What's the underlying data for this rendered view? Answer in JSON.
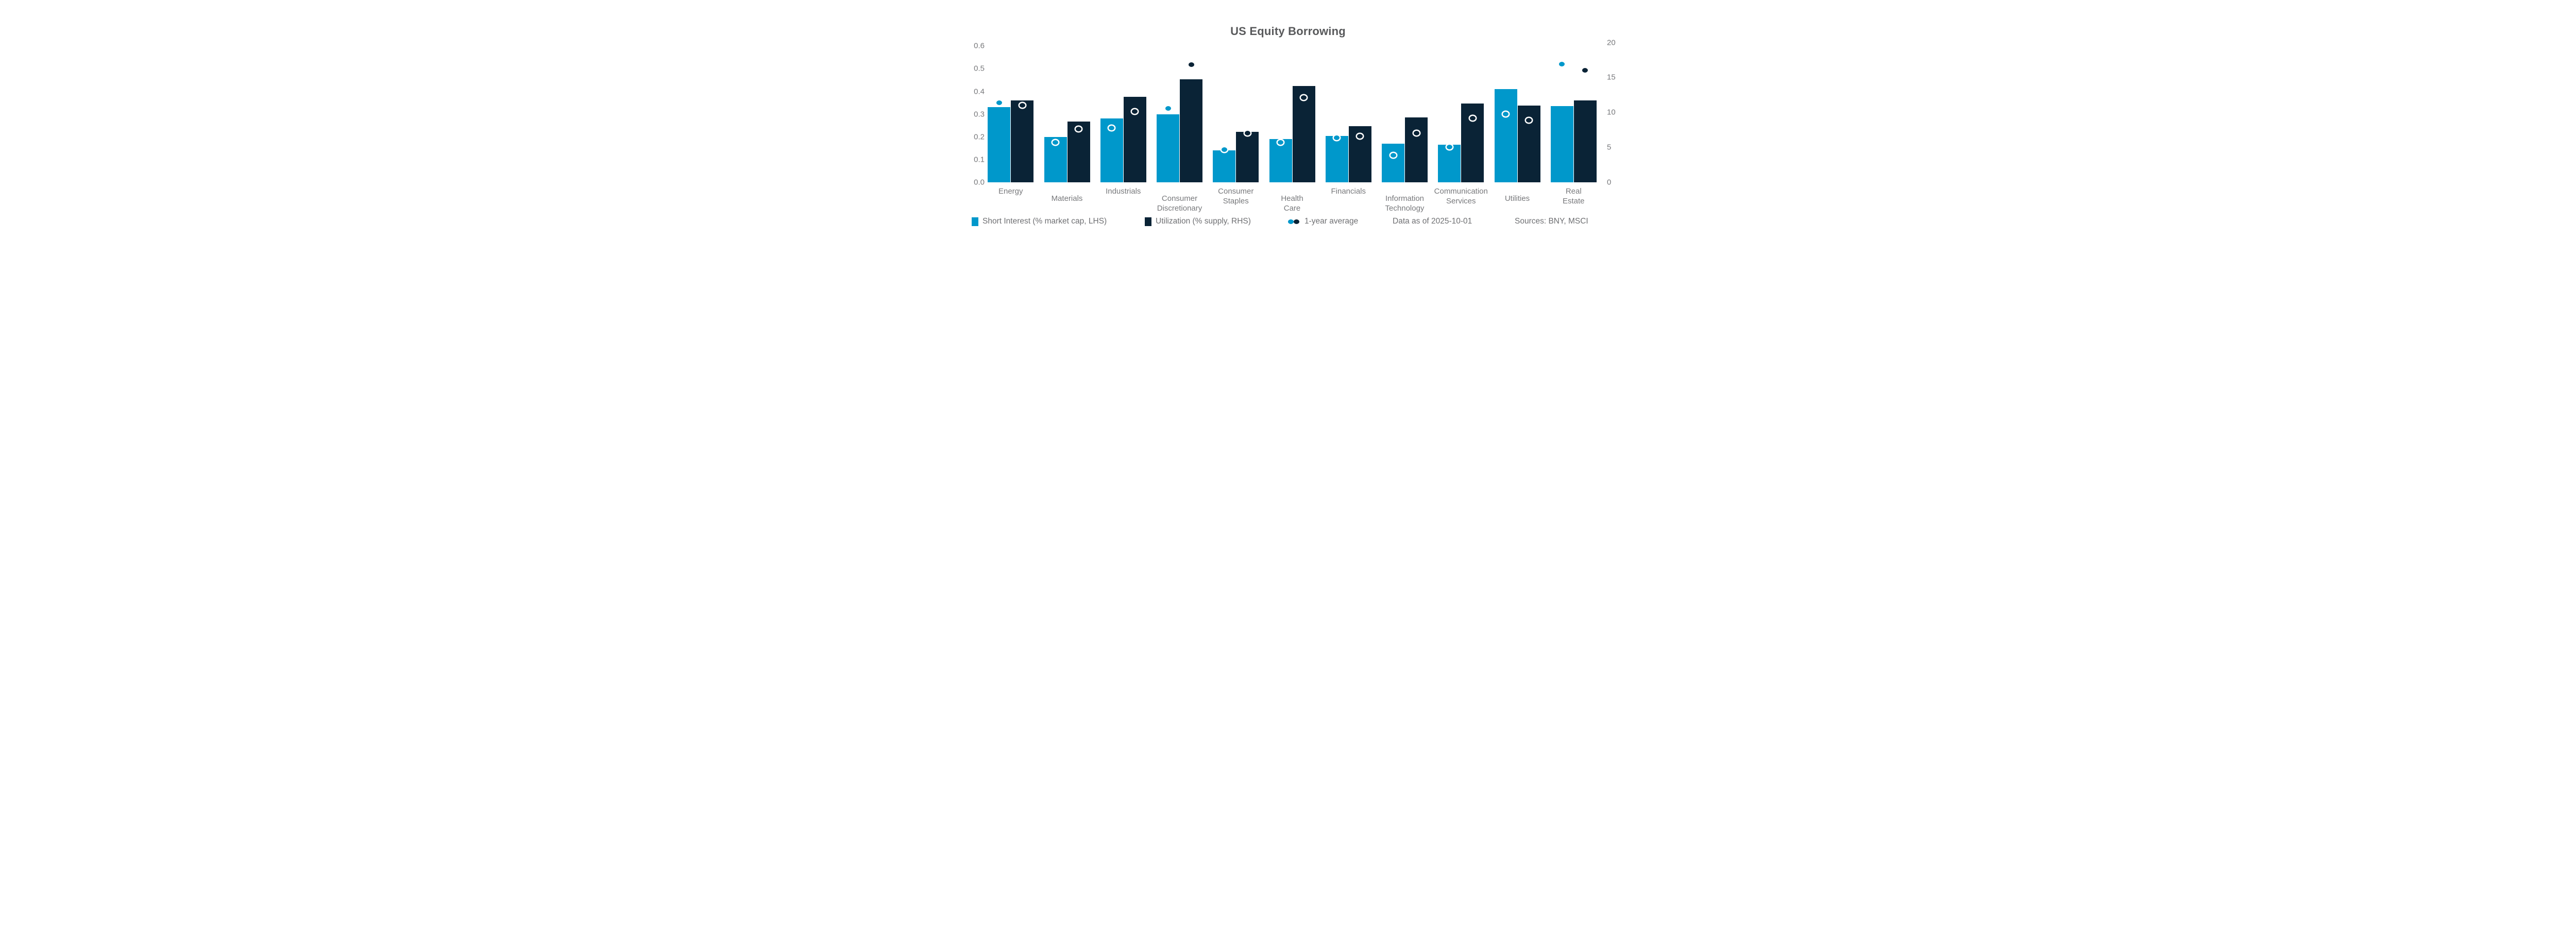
{
  "title": "US Equity Borrowing",
  "legend": {
    "short_interest": "Short Interest (% market cap, LHS)",
    "utilization": "Utilization (% supply, RHS)",
    "average": "1-year average"
  },
  "footnotes": {
    "as_of": "Data as of 2025-10-01",
    "sources": "Sources:  BNY, MSCI"
  },
  "colors": {
    "short_interest": "#0098CB",
    "utilization": "#0A2336",
    "title_text": "#58595B",
    "axis_text": "#77787B",
    "legend_text": "#6E6F72",
    "background": "#FFFFFF",
    "marker_ring": "#FFFFFF"
  },
  "chart_data": {
    "type": "bar",
    "title": "US Equity Borrowing",
    "categories": [
      {
        "name": "Energy",
        "lines": [
          "Energy"
        ]
      },
      {
        "name": "Materials",
        "lines": [
          "Materials"
        ]
      },
      {
        "name": "Industrials",
        "lines": [
          "Industrials"
        ]
      },
      {
        "name": "Consumer Discretionary",
        "lines": [
          "Consumer",
          "Discretionary"
        ]
      },
      {
        "name": "Consumer Staples",
        "lines": [
          "Consumer",
          "Staples"
        ]
      },
      {
        "name": "Health Care",
        "lines": [
          "Health",
          "Care"
        ]
      },
      {
        "name": "Financials",
        "lines": [
          "Financials"
        ]
      },
      {
        "name": "Information Technology",
        "lines": [
          "Information",
          "Technology"
        ]
      },
      {
        "name": "Communication Services",
        "lines": [
          "Communication",
          "Services"
        ]
      },
      {
        "name": "Utilities",
        "lines": [
          "Utilities"
        ]
      },
      {
        "name": "Real Estate",
        "lines": [
          "Real",
          "Estate"
        ]
      }
    ],
    "series": [
      {
        "name": "Short Interest (% market cap, LHS)",
        "type": "bar",
        "axis": "left",
        "color": "#0098CB",
        "values": [
          0.33,
          0.2,
          0.28,
          0.3,
          0.14,
          0.19,
          0.205,
          0.17,
          0.165,
          0.41,
          0.335
        ]
      },
      {
        "name": "Utilization (% supply, RHS)",
        "type": "bar",
        "axis": "right",
        "color": "#0A2336",
        "values": [
          11.7,
          8.7,
          12.2,
          14.7,
          7.2,
          13.8,
          8.0,
          9.3,
          11.3,
          11.0,
          11.7
        ]
      },
      {
        "name": "Short Interest 1-year average",
        "type": "point",
        "axis": "left",
        "color": "#0098CB",
        "values": [
          0.35,
          0.175,
          0.24,
          0.325,
          0.145,
          0.175,
          0.195,
          0.12,
          0.155,
          0.3,
          0.52
        ]
      },
      {
        "name": "Utilization 1-year average",
        "type": "point",
        "axis": "right",
        "color": "#0A2336",
        "values": [
          11.0,
          7.6,
          10.1,
          16.8,
          7.0,
          12.1,
          6.6,
          7.0,
          9.2,
          8.9,
          16.0
        ]
      }
    ],
    "left_axis": {
      "min": 0.0,
      "max": 0.6,
      "ticks": [
        0.0,
        0.1,
        0.2,
        0.3,
        0.4,
        0.5,
        0.6
      ]
    },
    "right_axis": {
      "min": 0,
      "max": 20,
      "ticks": [
        0,
        5,
        10,
        15,
        20
      ]
    },
    "grid": false,
    "axis_lines": false,
    "legend_position": "bottom",
    "label_stagger": true
  }
}
